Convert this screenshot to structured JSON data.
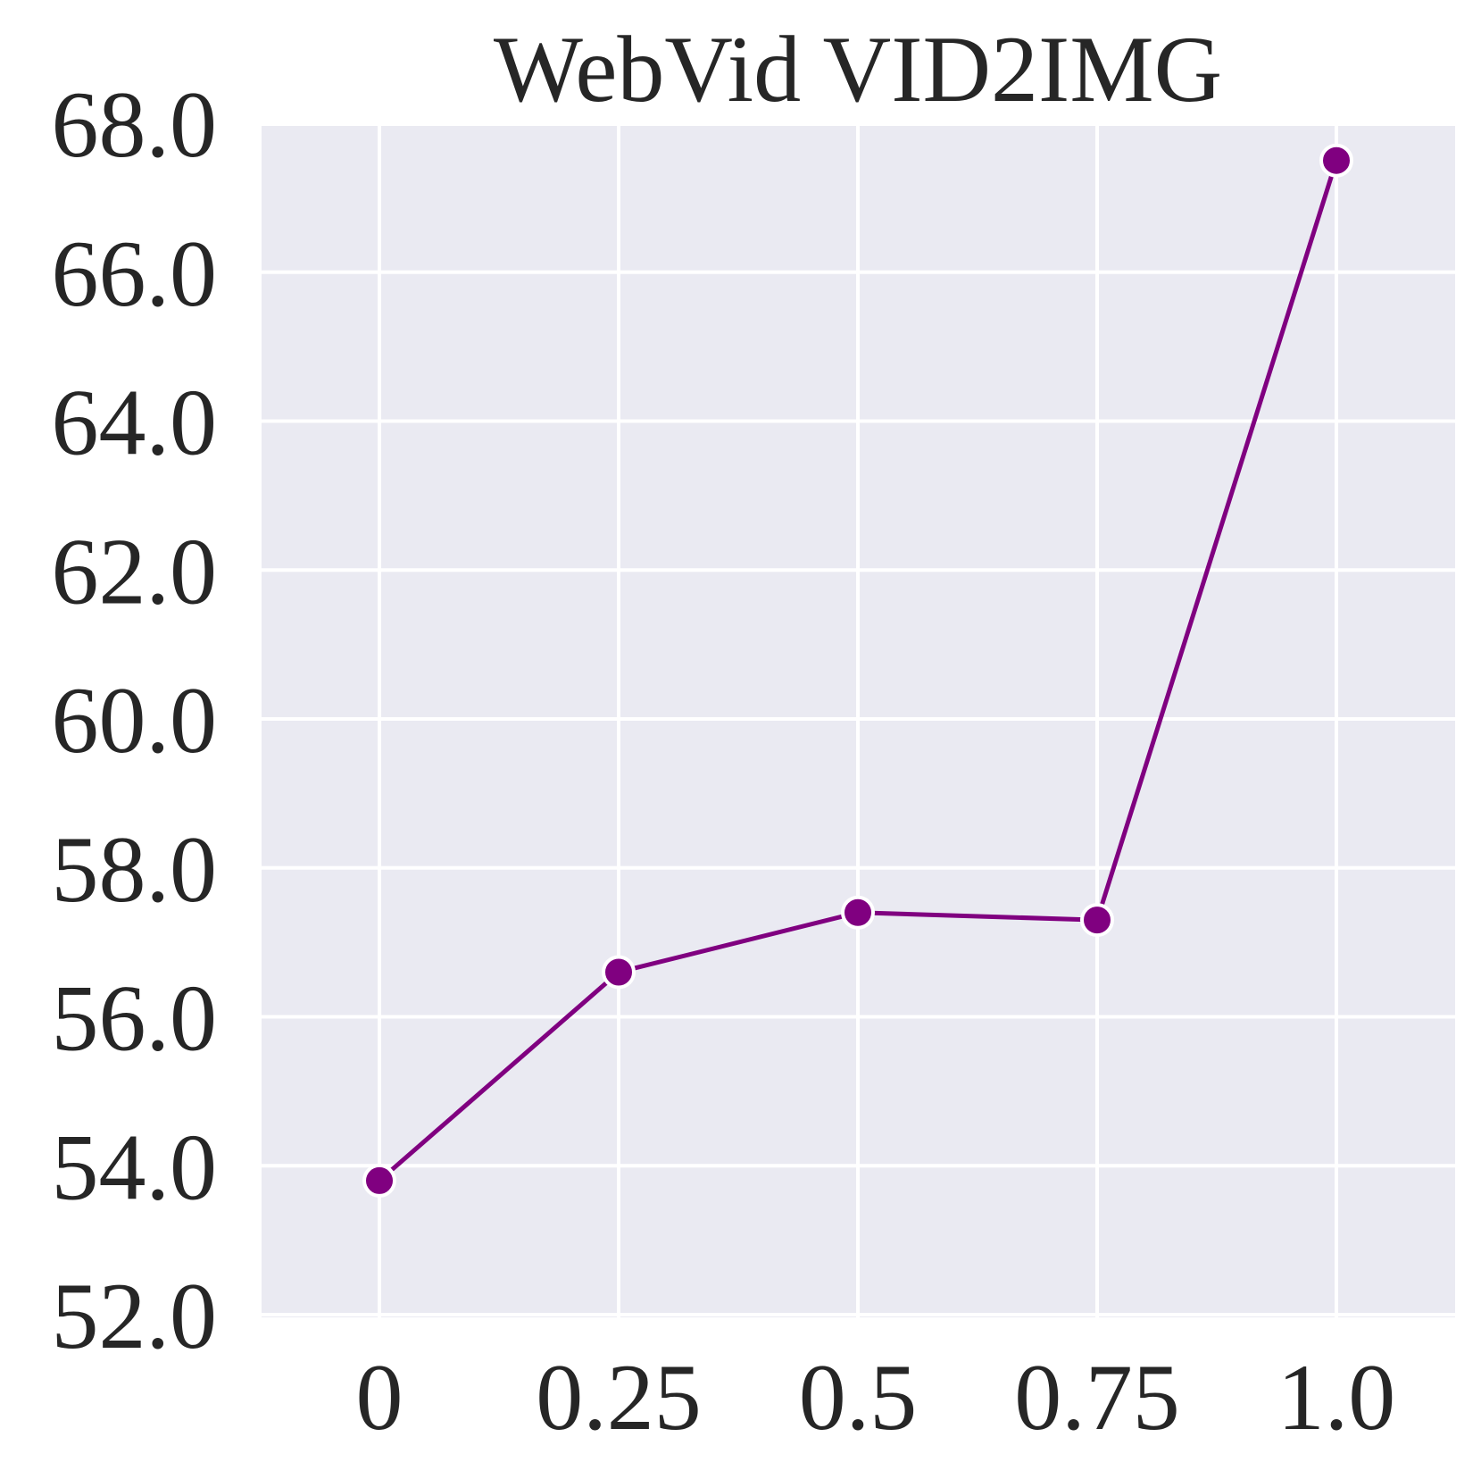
{
  "chart_data": {
    "type": "line",
    "title": "WebVid VID2IMG",
    "xlabel": "",
    "ylabel": "",
    "categories": [
      "0",
      "0.25",
      "0.5",
      "0.75",
      "1.0"
    ],
    "series": [
      {
        "values": [
          53.8,
          56.6,
          57.4,
          57.3,
          67.5
        ]
      }
    ],
    "yticks": [
      52.0,
      54.0,
      56.0,
      58.0,
      60.0,
      62.0,
      64.0,
      66.0,
      68.0
    ],
    "ytick_labels": [
      "52.0",
      "54.0",
      "56.0",
      "58.0",
      "60.0",
      "62.0",
      "64.0",
      "66.0",
      "68.0"
    ],
    "ylim": [
      52.0,
      68.0
    ],
    "grid": true,
    "legend": "none",
    "colors": {
      "line": "#800080",
      "marker": "#800080",
      "marker_edge": "#ffffff",
      "plot_background": "#eaeaf2",
      "grid": "#ffffff",
      "text": "#262626"
    }
  }
}
